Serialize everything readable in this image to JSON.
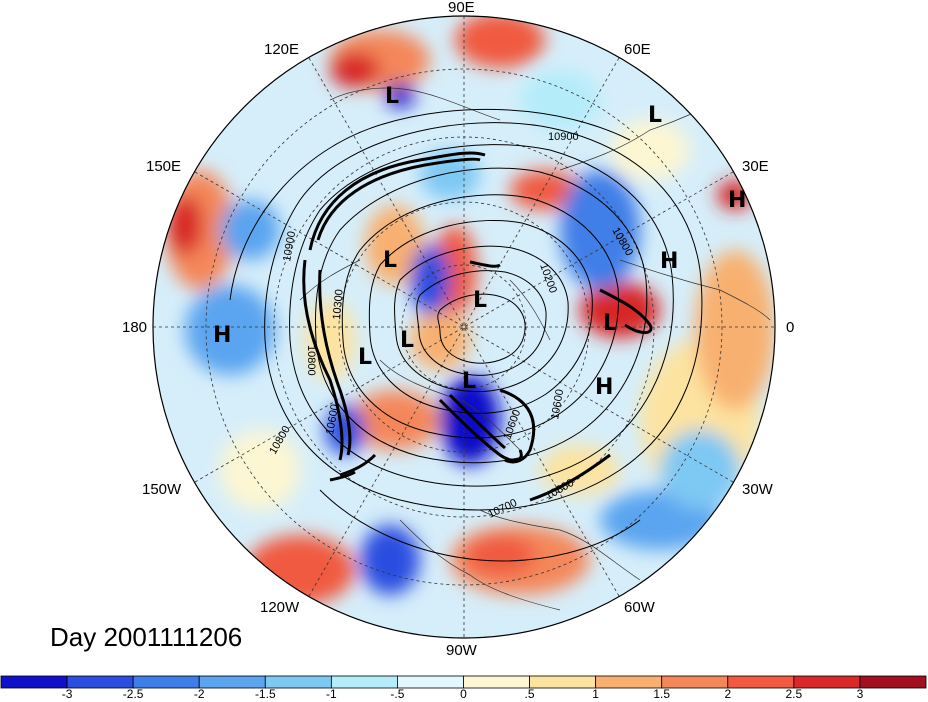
{
  "title_label": "Day 2001111206",
  "longitude_labels": {
    "n90": "90E",
    "e120": "120E",
    "e60": "60E",
    "e150": "150E",
    "e30": "30E",
    "w180": "180",
    "zero": "0",
    "w150": "150W",
    "w30": "30W",
    "w120": "120W",
    "w60": "60W",
    "s90": "90W"
  },
  "pressure_centers": [
    {
      "label": "L",
      "id": "l-north-siberia"
    },
    {
      "label": "L",
      "id": "l-kara"
    },
    {
      "label": "H",
      "id": "h-urals"
    },
    {
      "label": "H",
      "id": "h-europe"
    },
    {
      "label": "L",
      "id": "l-iceland"
    },
    {
      "label": "H",
      "id": "h-atlantic"
    },
    {
      "label": "L",
      "id": "l-east-siberia"
    },
    {
      "label": "L",
      "id": "l-pole"
    },
    {
      "label": "L",
      "id": "l-alaska"
    },
    {
      "label": "L",
      "id": "l-bering"
    },
    {
      "label": "L",
      "id": "l-canada"
    },
    {
      "label": "H",
      "id": "h-pacific"
    }
  ],
  "contour_labels": [
    "10900",
    "10900",
    "10200",
    "10300",
    "10800",
    "10600",
    "10600",
    "10800",
    "10600",
    "10800",
    "10700",
    "10800"
  ],
  "colorbar": {
    "colors": [
      "#1010c8",
      "#2a4ee0",
      "#3f7ee8",
      "#5aa4f0",
      "#7ec8f4",
      "#b4ecfa",
      "#e2f8fc",
      "#fdf6d2",
      "#fde3a0",
      "#f8b070",
      "#f4875a",
      "#f05a40",
      "#d82828",
      "#a01020"
    ],
    "tick_labels": [
      "-3",
      "-2.5",
      "-2",
      "-1.5",
      "-1",
      "-.5",
      "0",
      ".5",
      "1",
      "1.5",
      "2",
      "2.5",
      "3"
    ]
  },
  "map": {
    "projection": "north-polar-stereographic",
    "field": "height anomaly (shaded) with geopotential height contours"
  }
}
